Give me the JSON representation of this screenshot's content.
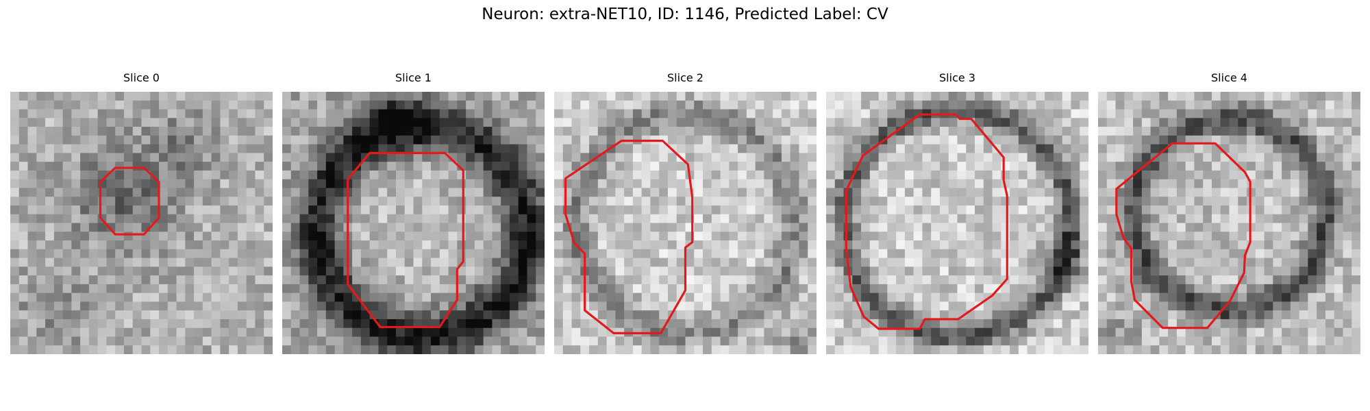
{
  "figure": {
    "suptitle": "Neuron: extra-NET10, ID: 1146, Predicted Label: CV",
    "contour_color": "#e31a1c",
    "colormap": "grayscale",
    "panels": [
      {
        "title": "Slice 0"
      },
      {
        "title": "Slice 1"
      },
      {
        "title": "Slice 2"
      },
      {
        "title": "Slice 3"
      },
      {
        "title": "Slice 4"
      }
    ]
  }
}
